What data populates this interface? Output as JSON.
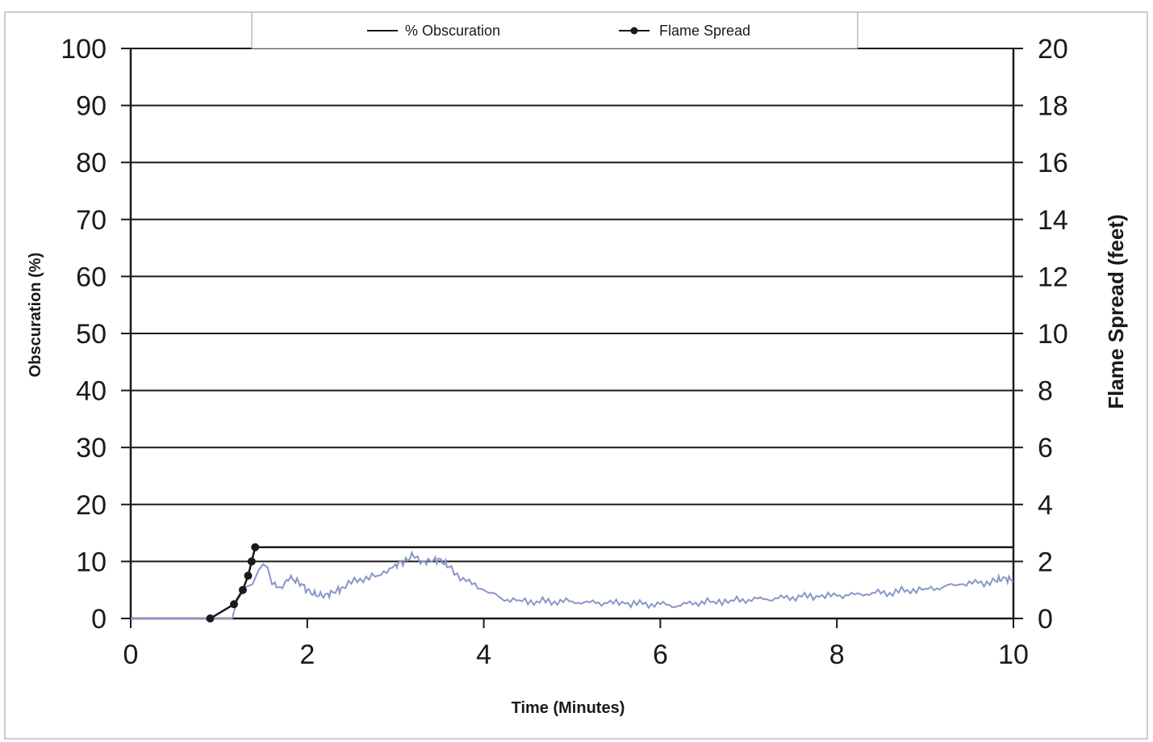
{
  "chart_data": {
    "type": "line",
    "title": "",
    "xlabel": "Time (Minutes)",
    "ylabel": "Obscuration (%)",
    "y2label": "Flame Spread (feet)",
    "xlim": [
      0,
      10
    ],
    "ylim": [
      0,
      100
    ],
    "y2lim": [
      0,
      20
    ],
    "x_ticks": [
      "0",
      "2",
      "4",
      "6",
      "8",
      "10"
    ],
    "y_ticks": [
      "0",
      "10",
      "20",
      "30",
      "40",
      "50",
      "60",
      "70",
      "80",
      "90",
      "100"
    ],
    "y2_ticks": [
      "0",
      "2",
      "4",
      "6",
      "8",
      "10",
      "12",
      "14",
      "16",
      "18",
      "20"
    ],
    "grid": true,
    "legend_position": "top-center",
    "series": [
      {
        "name": "% Obscuration",
        "axis": "left",
        "color": "#8a96c8",
        "x": [
          0,
          1.15,
          1.2,
          1.3,
          1.38,
          1.45,
          1.5,
          1.55,
          1.6,
          1.7,
          1.8,
          1.9,
          2.0,
          2.1,
          2.2,
          2.3,
          2.4,
          2.6,
          2.8,
          3.0,
          3.1,
          3.2,
          3.3,
          3.4,
          3.5,
          3.6,
          3.8,
          4.0,
          4.2,
          4.4,
          4.6,
          4.8,
          5.0,
          5.2,
          5.4,
          5.6,
          5.8,
          6.0,
          6.2,
          6.4,
          6.6,
          6.8,
          7.0,
          7.2,
          7.4,
          7.6,
          7.8,
          8.0,
          8.2,
          8.4,
          8.6,
          8.8,
          9.0,
          9.2,
          9.4,
          9.6,
          9.8,
          9.9,
          10.0
        ],
        "y": [
          0,
          0,
          3,
          5.5,
          6,
          8.5,
          9.5,
          9,
          6,
          5.5,
          7,
          6.5,
          5,
          4,
          4.2,
          4.5,
          5.5,
          7,
          7.5,
          9.5,
          10,
          11,
          10,
          10,
          10.5,
          9,
          6.5,
          5,
          3.5,
          3.2,
          3,
          3,
          3,
          2.8,
          2.7,
          2.6,
          2.5,
          2.5,
          2.2,
          2.8,
          3,
          3.2,
          3.3,
          3.4,
          3.6,
          3.8,
          3.8,
          4,
          4.2,
          4.5,
          4.5,
          5,
          5.2,
          5.5,
          6,
          6.2,
          6.5,
          7.2,
          6.5
        ]
      },
      {
        "name": "Flame Spread",
        "axis": "right",
        "color": "#1a1a1a",
        "x": [
          0.9,
          1.17,
          1.27,
          1.33,
          1.37,
          1.41,
          1.45,
          10
        ],
        "y": [
          0,
          0.5,
          1.0,
          1.5,
          2.0,
          2.5,
          2.5,
          2.5
        ],
        "marker_count": 6
      }
    ]
  }
}
